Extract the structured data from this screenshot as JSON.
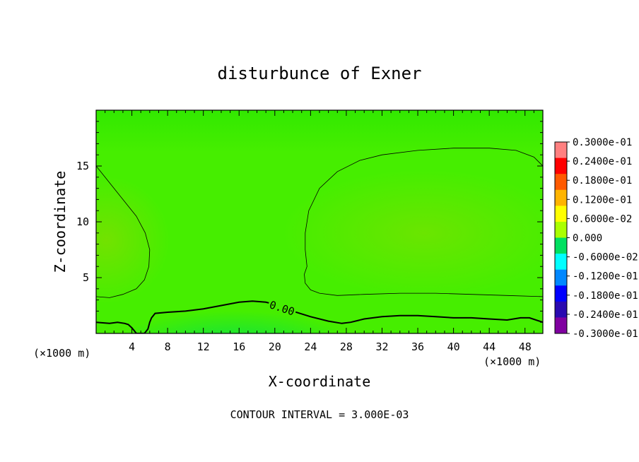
{
  "chart_data": {
    "type": "heatmap",
    "title": "disturbunce of Exner",
    "xlabel": "X-coordinate",
    "ylabel": "Z-coordinate",
    "x_unit": "(×1000 m)",
    "y_unit": "(×1000 m)",
    "xlim": [
      0,
      50
    ],
    "ylim": [
      0,
      20
    ],
    "x_ticks": [
      4,
      8,
      12,
      16,
      20,
      24,
      28,
      32,
      36,
      40,
      44,
      48
    ],
    "x_tick_labels": [
      "4",
      "8",
      "12",
      "16",
      "20",
      "24",
      "28",
      "32",
      "36",
      "40",
      "44",
      "48"
    ],
    "y_ticks": [
      5,
      10,
      15
    ],
    "y_tick_labels": [
      "5",
      "10",
      "15"
    ],
    "footer": "CONTOUR INTERVAL = 3.000E-03",
    "colorbar": {
      "labels": [
        "0.3000e-01",
        "0.2400e-01",
        "0.1800e-01",
        "0.1200e-01",
        "0.6000e-02",
        "0.000",
        "-0.6000e-02",
        "-0.1200e-01",
        "-0.1800e-01",
        "-0.2400e-01",
        "-0.3000e-01"
      ],
      "colors": [
        "#ff8080",
        "#ff0000",
        "#ff5a00",
        "#ffb400",
        "#ffff00",
        "#aaff00",
        "#00e060",
        "#00ffff",
        "#0088ff",
        "#0000ff",
        "#2a0ab0",
        "#8000a0"
      ]
    },
    "background_color": "#46ee00",
    "contours": [
      {
        "label": "0.00",
        "level": 0.0,
        "points": [
          [
            0,
            1.0
          ],
          [
            1.5,
            0.9
          ],
          [
            2.4,
            1.0
          ],
          [
            3.2,
            0.9
          ],
          [
            3.6,
            0.8
          ],
          [
            4.0,
            0.5
          ],
          [
            4.3,
            0.2
          ],
          [
            4.5,
            0
          ],
          [
            5.4,
            0
          ],
          [
            5.8,
            0.4
          ],
          [
            6.0,
            1.0
          ],
          [
            6.2,
            1.4
          ],
          [
            6.6,
            1.8
          ],
          [
            8.0,
            1.9
          ],
          [
            10.0,
            2.0
          ],
          [
            12.0,
            2.2
          ],
          [
            14.0,
            2.5
          ],
          [
            16.0,
            2.8
          ],
          [
            17.5,
            2.9
          ],
          [
            19.0,
            2.8
          ],
          [
            20.0,
            2.6
          ],
          [
            22.0,
            2.0
          ],
          [
            24.0,
            1.5
          ],
          [
            26.0,
            1.1
          ],
          [
            27.5,
            0.9
          ],
          [
            28.5,
            1.0
          ],
          [
            30.0,
            1.3
          ],
          [
            32.0,
            1.5
          ],
          [
            34.0,
            1.6
          ],
          [
            36.0,
            1.6
          ],
          [
            38.0,
            1.5
          ],
          [
            40.0,
            1.4
          ],
          [
            42.0,
            1.4
          ],
          [
            44.0,
            1.3
          ],
          [
            46.0,
            1.2
          ],
          [
            47.5,
            1.4
          ],
          [
            48.5,
            1.4
          ],
          [
            50.0,
            1.0
          ]
        ]
      },
      {
        "label": "",
        "level": 0.003,
        "points": [
          [
            0,
            15.0
          ],
          [
            1.5,
            13.5
          ],
          [
            3.0,
            12.0
          ],
          [
            4.5,
            10.5
          ],
          [
            5.5,
            9.0
          ],
          [
            6.0,
            7.5
          ],
          [
            5.9,
            6.0
          ],
          [
            5.4,
            4.8
          ],
          [
            4.5,
            4.0
          ],
          [
            3.0,
            3.5
          ],
          [
            1.5,
            3.2
          ],
          [
            0,
            3.3
          ]
        ]
      },
      {
        "label": "",
        "level": 0.003,
        "points": [
          [
            50.0,
            15.0
          ],
          [
            49.0,
            15.8
          ],
          [
            47.0,
            16.4
          ],
          [
            44.0,
            16.6
          ],
          [
            40.0,
            16.6
          ],
          [
            36.0,
            16.4
          ],
          [
            32.0,
            16.0
          ],
          [
            29.5,
            15.5
          ],
          [
            27.0,
            14.5
          ],
          [
            25.0,
            13.0
          ],
          [
            23.8,
            11.0
          ],
          [
            23.4,
            9.0
          ],
          [
            23.4,
            7.5
          ],
          [
            23.6,
            6.0
          ],
          [
            23.3,
            5.3
          ],
          [
            23.4,
            4.5
          ],
          [
            24.0,
            3.9
          ],
          [
            25.0,
            3.6
          ],
          [
            27.0,
            3.4
          ],
          [
            30.0,
            3.5
          ],
          [
            34.0,
            3.6
          ],
          [
            38.0,
            3.6
          ],
          [
            42.0,
            3.5
          ],
          [
            46.0,
            3.4
          ],
          [
            50.0,
            3.3
          ]
        ]
      }
    ]
  }
}
